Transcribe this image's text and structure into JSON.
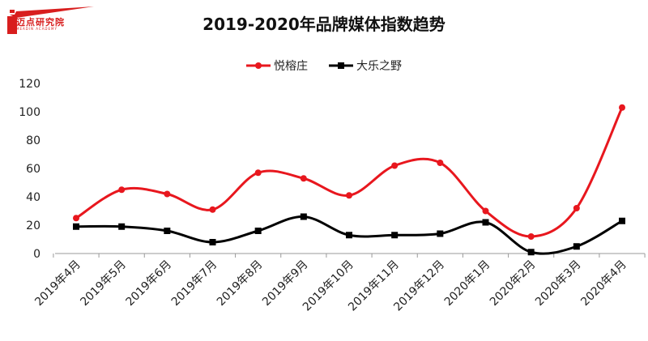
{
  "logo": {
    "text": "迈点研究院",
    "sub": "MEADIN ACADEMY"
  },
  "colors": {
    "series1": "#e8171e",
    "series2": "#000000",
    "axis": "#999999"
  },
  "chart_data": {
    "type": "line",
    "title": "2019-2020年品牌媒体指数趋势",
    "categories": [
      "2019年4月",
      "2019年5月",
      "2019年6月",
      "2019年7月",
      "2019年8月",
      "2019年9月",
      "2019年10月",
      "2019年11月",
      "2019年12月",
      "2020年1月",
      "2020年2月",
      "2020年3月",
      "2020年4月"
    ],
    "series": [
      {
        "name": "悦榕庄",
        "values": [
          25,
          45,
          42,
          31,
          57,
          53,
          41,
          62,
          64,
          30,
          12,
          32,
          103
        ]
      },
      {
        "name": "大乐之野",
        "values": [
          19,
          19,
          16,
          8,
          16,
          26,
          13,
          13,
          14,
          22,
          1,
          5,
          23
        ]
      }
    ],
    "ylim": [
      0,
      120
    ],
    "yticks": [
      "0",
      "20",
      "40",
      "60",
      "80",
      "100",
      "120"
    ],
    "legend": "top-center",
    "grid": false,
    "smooth": true
  }
}
